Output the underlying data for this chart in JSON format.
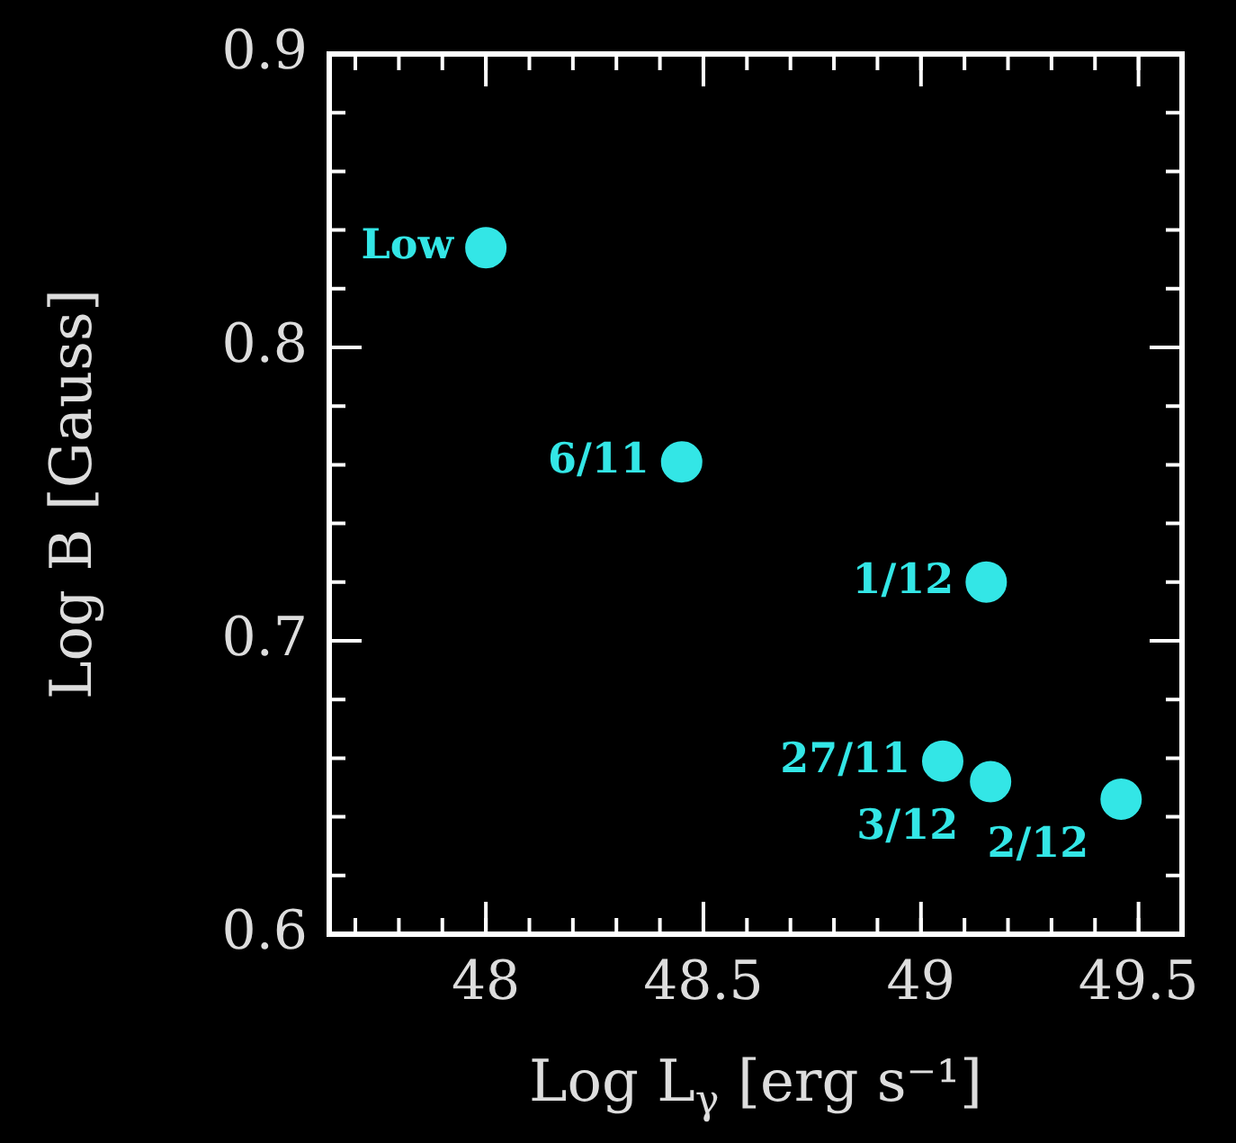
{
  "chart_data": {
    "type": "scatter",
    "xlabel": "Log L$_{γ}$ [erg s⁻¹]",
    "ylabel": "Log B [Gauss]",
    "x": [
      48.0,
      48.45,
      49.15,
      49.05,
      49.16,
      49.46
    ],
    "values": [
      0.834,
      0.761,
      0.72,
      0.659,
      0.652,
      0.646
    ],
    "color": "#33e6e6",
    "marker": "circle",
    "grid": false,
    "xlim": [
      47.64,
      49.6
    ],
    "xticks": [
      48,
      48.5,
      49,
      49.5
    ],
    "ylim": [
      0.6,
      0.9
    ],
    "yticks": [
      0.6,
      0.7,
      0.8,
      0.9
    ],
    "annotations": [
      {
        "text": "Low",
        "x": 48.0,
        "y": 0.834
      },
      {
        "text": "6/11",
        "x": 48.45,
        "y": 0.761
      },
      {
        "text": "1/12",
        "x": 49.15,
        "y": 0.72
      },
      {
        "text": "27/11",
        "x": 49.05,
        "y": 0.659
      },
      {
        "text": "3/12",
        "x": 49.16,
        "y": 0.652
      },
      {
        "text": "2/12",
        "x": 49.46,
        "y": 0.646
      }
    ]
  }
}
